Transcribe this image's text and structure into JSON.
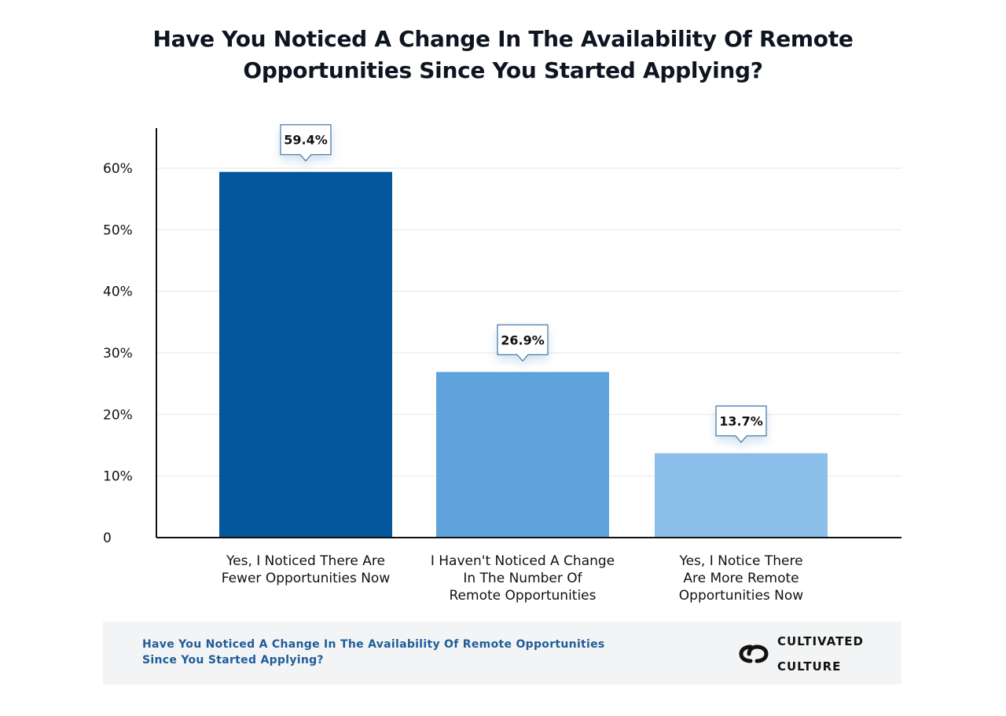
{
  "chart_data": {
    "type": "bar",
    "title": "Have You Noticed A Change In The Availability Of Remote Opportunities Since You Started Applying?",
    "categories": [
      "Yes, I Noticed There Are Fewer Opportunities Now",
      "I Haven't Noticed A Change In The Number Of Remote Opportunities",
      "Yes, I Notice There Are More Remote Opportunities Now"
    ],
    "category_lines": [
      [
        "Yes, I Noticed There Are",
        "Fewer Opportunities Now"
      ],
      [
        "I Haven't Noticed A Change",
        "In The Number Of",
        "Remote Opportunities"
      ],
      [
        "Yes, I Notice There",
        "Are More Remote",
        "Opportunities Now"
      ]
    ],
    "values": [
      59.4,
      26.9,
      13.7
    ],
    "data_labels": [
      "59.4%",
      "26.9%",
      "13.7%"
    ],
    "colors": [
      "#02569b",
      "#5ea3dc",
      "#8bbfea"
    ],
    "yticks": [
      0,
      10,
      20,
      30,
      40,
      50,
      60
    ],
    "ytick_labels": [
      "0",
      "10%",
      "20%",
      "30%",
      "40%",
      "50%",
      "60%"
    ],
    "ylim": [
      0,
      60
    ],
    "xlabel": "",
    "ylabel": "",
    "grid": true,
    "legend": "none"
  },
  "header": {
    "title_line1": "Have You Noticed A Change In The Availability Of Remote",
    "title_line2": "Opportunities Since You Started Applying?"
  },
  "footer": {
    "caption_line1": "Have You Noticed A Change In The Availability Of Remote Opportunities",
    "caption_line2": "Since You Started Applying?",
    "brand_line1": "CULTIVATED",
    "brand_line2": "CULTURE",
    "brand_icon": "cultivated-culture-logo-icon"
  }
}
